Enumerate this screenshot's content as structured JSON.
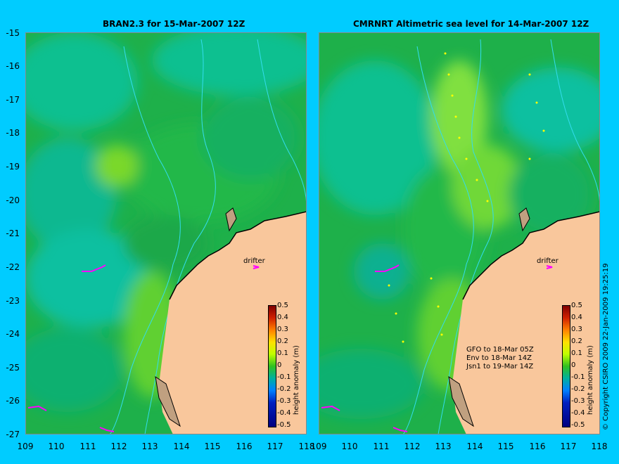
{
  "left_panel": {
    "title": "BRAN2.3 for 15-Mar-2007 12Z"
  },
  "right_panel": {
    "title": "CMRNRT Altimetric sea level  for 14-Mar-2007 12Z"
  },
  "y_ticks": [
    "-15",
    "-16",
    "-17",
    "-18",
    "-19",
    "-20",
    "-21",
    "-22",
    "-23",
    "-24",
    "-25",
    "-26",
    "-27"
  ],
  "left_x_ticks": [
    "109",
    "110",
    "111",
    "112",
    "113",
    "114",
    "115",
    "116",
    "117",
    "118"
  ],
  "right_x_ticks": [
    "109",
    "110",
    "111",
    "112",
    "113",
    "114",
    "115",
    "116",
    "117",
    "118"
  ],
  "colorbar": {
    "ticks": [
      "0.5",
      "0.4",
      "0.3",
      "0.2",
      "0.1",
      "0",
      "-0.1",
      "-0.2",
      "-0.3",
      "-0.4",
      "-0.5"
    ],
    "label": "height anomaly (m)"
  },
  "drifter_label": "drifter",
  "altimeter_legend": [
    "GFO to 18-Mar 05Z",
    "Env to 18-Mar 14Z",
    "Jsn1 to 19-Mar 14Z"
  ],
  "copyright": "© Copyright CSIRO 2009  22-Jan-2009 19:25:19",
  "colors": {
    "background": "#00ccff",
    "land": "#f9c79c",
    "ocean_mid": "#22b84a",
    "drifter": "#ff00ff",
    "contour": "#33ddee"
  },
  "chart_data": {
    "type": "map",
    "region": {
      "lon_range": [
        109,
        118
      ],
      "lat_range": [
        -27,
        -15
      ]
    },
    "colorbar_range": [
      -0.5,
      0.5
    ],
    "drifter_lon_lat": [
      [
        110.9,
        -22.1
      ],
      [
        109.4,
        -26.3
      ],
      [
        111.6,
        -26.9
      ],
      [
        116.5,
        -22.0
      ]
    ]
  }
}
